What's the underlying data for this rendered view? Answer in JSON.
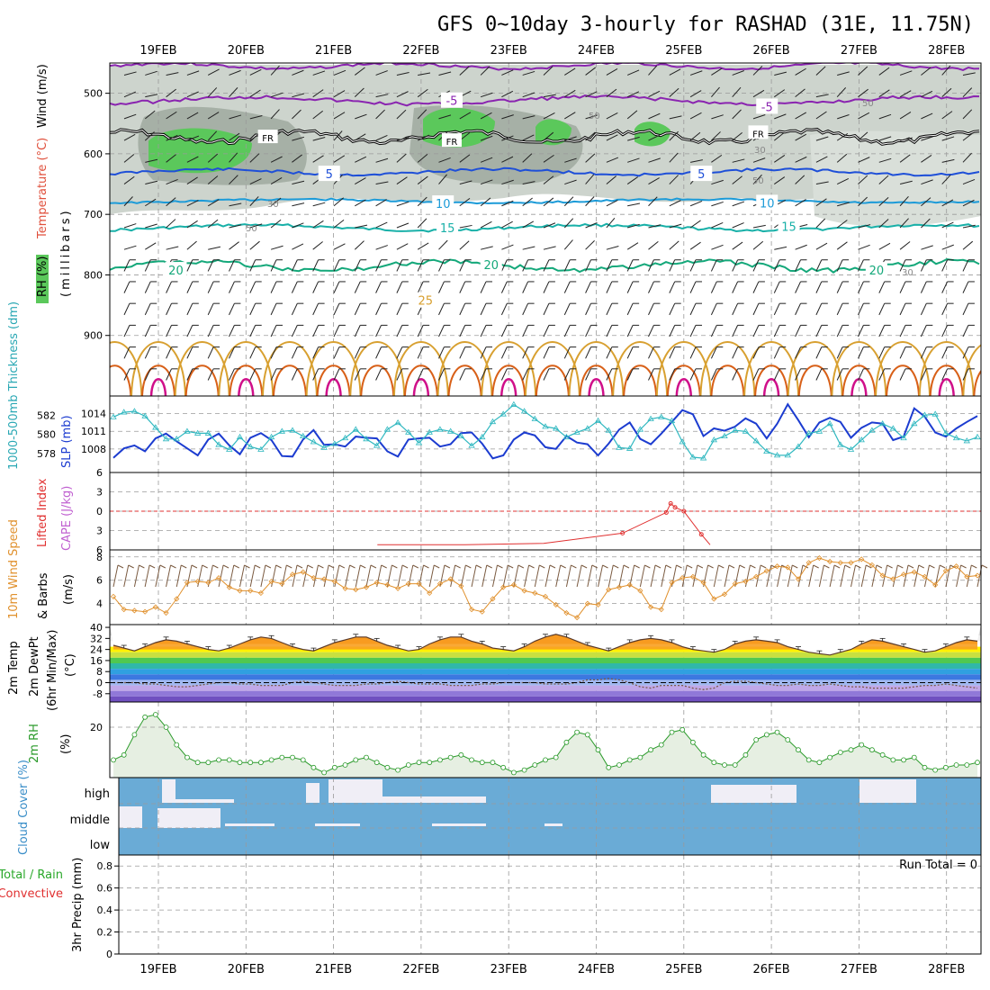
{
  "title": "GFS 0~10day 3-hourly for RASHAD (31E, 11.75N)",
  "dates": [
    "19FEB",
    "20FEB",
    "21FEB",
    "22FEB",
    "23FEB",
    "24FEB",
    "25FEB",
    "26FEB",
    "27FEB",
    "28FEB"
  ],
  "colors": {
    "rh_green": "#5bc85b",
    "rh_gray": "#b8c2b8",
    "freezing": "#000000",
    "t_minus5": "#8a24b0",
    "t_5": "#1e4fd8",
    "t_10": "#1c9bd8",
    "t_15": "#18b0a8",
    "t_20": "#14a87a",
    "t_25": "#d8a030",
    "t_30": "#d86018",
    "t_35": "#d0108a",
    "slp": "#1c3cd0",
    "thickness": "#30b8c0",
    "wind": "#e0902c",
    "barb": "#7a5a40",
    "cloud": "#6aabd6",
    "cloud_clear": "#f0eef6",
    "rh2m": "#2a9a2a",
    "rh2m_fill": "#e6efe2",
    "li": "#e03030"
  },
  "chart_data": [
    {
      "type": "contour",
      "panel": "upper_air",
      "ylabel_parts": [
        "RH (%)",
        "Temperature (°C)",
        "Wind (m/s)"
      ],
      "yaxis_label": "(millibars)",
      "yticks": [
        500,
        600,
        700,
        800,
        900
      ],
      "ylim": [
        1000,
        450
      ],
      "freezing_label": "FR",
      "rh_labels": [
        "30",
        "50",
        "30",
        "50",
        "30",
        "50",
        "50",
        "30"
      ],
      "isotherm_labels": [
        {
          "value": "-5",
          "pressure": 512,
          "x_day": 3.35
        },
        {
          "value": "-5",
          "pressure": 522,
          "x_day": 6.95
        },
        {
          "value": "5",
          "pressure": 633,
          "x_day": 1.95
        },
        {
          "value": "5",
          "pressure": 633,
          "x_day": 6.2
        },
        {
          "value": "10",
          "pressure": 682,
          "x_day": 3.25
        },
        {
          "value": "10",
          "pressure": 681,
          "x_day": 6.95
        },
        {
          "value": "15",
          "pressure": 722,
          "x_day": 3.3
        },
        {
          "value": "15",
          "pressure": 720,
          "x_day": 7.2
        },
        {
          "value": "20",
          "pressure": 792,
          "x_day": 0.2
        },
        {
          "value": "20",
          "pressure": 783,
          "x_day": 3.8
        },
        {
          "value": "20",
          "pressure": 792,
          "x_day": 8.2
        },
        {
          "value": "25",
          "pressure": 842,
          "x_day": 3.05
        }
      ]
    },
    {
      "type": "line",
      "panel": "slp_thickness",
      "ylabel_left": "1000-500mb Thickness (dm)",
      "ylabel_right": "SLP (mb)",
      "yticks_thickness": [
        578,
        580,
        582
      ],
      "yticks_slp": [
        1008,
        1011,
        1014
      ],
      "series": [
        {
          "name": "SLP",
          "values": [
            1006.5,
            1008.1,
            1008.6,
            1007.6,
            1009.8,
            1010.6,
            1009.3,
            1008.1,
            1006.9,
            1009.6,
            1010.6,
            1008.6,
            1007.1,
            1009.9,
            1010.7,
            1009.5,
            1006.8,
            1006.7,
            1009.6,
            1011.2,
            1008.7,
            1008.8,
            1008.4,
            1010.1,
            1009.9,
            1009.8,
            1007.6,
            1006.7,
            1009.6,
            1009.8,
            1009.9,
            1008.4,
            1008.8,
            1010.7,
            1010.8,
            1008.9,
            1006.4,
            1006.9,
            1009.6,
            1010.8,
            1010.3,
            1008.3,
            1008.0,
            1010.2,
            1009.1,
            1008.8,
            1006.9,
            1008.9,
            1011.3,
            1012.5,
            1009.7,
            1008.8,
            1010.6,
            1012.6,
            1014.6,
            1013.9,
            1010.2,
            1011.5,
            1011.1,
            1011.8,
            1013.2,
            1012.3,
            1009.8,
            1012.3,
            1015.6,
            1012.9,
            1010.0,
            1012.5,
            1013.3,
            1012.6,
            1009.9,
            1011.6,
            1012.5,
            1012.3,
            1009.5,
            1010.1,
            1014.9,
            1013.5,
            1010.8,
            1010.1,
            1011.5,
            1012.6,
            1013.6
          ]
        },
        {
          "name": "Thickness",
          "values": [
            581.8,
            582.3,
            582.4,
            581.9,
            580.7,
            579.5,
            579.5,
            580.3,
            580.1,
            580.1,
            578.9,
            578.4,
            579.7,
            578.7,
            578.4,
            579.7,
            580.3,
            580.4,
            579.8,
            579.2,
            578.6,
            579.0,
            579.6,
            580.5,
            579.5,
            578.8,
            580.5,
            581.2,
            580.2,
            579.1,
            580.2,
            580.5,
            580.3,
            579.8,
            578.8,
            579.7,
            581.3,
            582.1,
            583.1,
            582.4,
            581.6,
            580.8,
            580.6,
            579.7,
            580.2,
            580.6,
            581.4,
            580.4,
            578.6,
            578.5,
            580.5,
            581.6,
            581.8,
            581.4,
            579.2,
            577.6,
            577.5,
            579.4,
            579.8,
            580.4,
            580.3,
            579.3,
            578.2,
            577.8,
            577.8,
            578.7,
            580.1,
            580.3,
            581.1,
            578.9,
            578.4,
            579.4,
            580.4,
            581.1,
            580.6,
            579.6,
            581.1,
            582.0,
            582.1,
            580.1,
            579.6,
            579.3,
            579.7
          ]
        }
      ]
    },
    {
      "type": "line",
      "panel": "stability",
      "ylabel_left": "Lifted Index",
      "ylabel_right": "CAPE (J/kg)",
      "yticks": [
        "6",
        "3",
        "0",
        "3",
        "6"
      ],
      "series": [
        {
          "name": "CAPE",
          "points": [
            [
              2.5,
              5.6
            ],
            [
              3.5,
              5.6
            ],
            [
              4.4,
              5.5
            ],
            [
              5.3,
              4.7
            ],
            [
              5.8,
              3.1
            ],
            [
              5.85,
              2.4
            ],
            [
              5.9,
              2.7
            ],
            [
              6.0,
              3.0
            ],
            [
              6.2,
              4.8
            ],
            [
              6.3,
              5.6
            ]
          ]
        }
      ]
    },
    {
      "type": "line",
      "panel": "wind10m",
      "ylabel_left": "10m Wind Speed",
      "ylabel_right": "& Barbs",
      "yunit": "(m/s)",
      "yticks": [
        4,
        6,
        8
      ],
      "series": [
        {
          "name": "Wind speed",
          "values": [
            4.6,
            3.5,
            3.4,
            3.3,
            3.7,
            3.2,
            4.4,
            5.8,
            5.9,
            5.8,
            6.2,
            5.4,
            5.1,
            5.1,
            4.9,
            5.9,
            5.7,
            6.5,
            6.7,
            6.2,
            6.1,
            5.9,
            5.3,
            5.2,
            5.4,
            5.8,
            5.6,
            5.3,
            5.7,
            5.7,
            4.9,
            5.7,
            6.1,
            5.5,
            3.5,
            3.3,
            4.4,
            5.4,
            5.6,
            5.1,
            4.9,
            4.6,
            3.9,
            3.2,
            2.8,
            4.0,
            3.9,
            5.2,
            5.4,
            5.6,
            5.1,
            3.7,
            3.5,
            5.8,
            6.2,
            6.3,
            5.8,
            4.4,
            4.8,
            5.7,
            5.9,
            6.3,
            6.8,
            7.2,
            7.1,
            6.1,
            7.5,
            7.9,
            7.6,
            7.5,
            7.5,
            7.8,
            7.3,
            6.4,
            6.1,
            6.5,
            6.7,
            6.3,
            5.6,
            6.8,
            7.2,
            6.3,
            6.4
          ]
        }
      ]
    },
    {
      "type": "area",
      "panel": "temperature2m",
      "ylabel_parts": [
        "2m Temp",
        "2m DewPt",
        "(6hr Min/Max)",
        "(°C)"
      ],
      "yticks": [
        -8,
        0,
        8,
        16,
        24,
        32,
        40
      ],
      "ytick_labels": [
        "-8",
        "0",
        "8",
        "16",
        "24",
        "32",
        "40"
      ],
      "series": [
        {
          "name": "2m Temp",
          "values": [
            27,
            25,
            23,
            26,
            29,
            31,
            30,
            28,
            26,
            24,
            23,
            25,
            28,
            31,
            33,
            32,
            29,
            26,
            24,
            23,
            26,
            29,
            31,
            33,
            33,
            30,
            27,
            25,
            23,
            24,
            28,
            31,
            33,
            33,
            30,
            28,
            25,
            24,
            23,
            26,
            30,
            33,
            35,
            33,
            30,
            27,
            25,
            23,
            26,
            29,
            31,
            32,
            31,
            29,
            26,
            24,
            23,
            22,
            24,
            28,
            30,
            31,
            30,
            29,
            26,
            24,
            22,
            21,
            20,
            22,
            24,
            28,
            31,
            30,
            28,
            26,
            24,
            22,
            23,
            26,
            29,
            31,
            30
          ]
        },
        {
          "name": "2m DewPt",
          "values": [
            0,
            0,
            0,
            -1,
            -1,
            -2,
            -3,
            -3,
            -2,
            -1,
            0,
            0,
            -1,
            -1,
            -2,
            -2,
            -2,
            0,
            1,
            0,
            -1,
            -2,
            -2,
            -2,
            -1,
            -1,
            0,
            1,
            0,
            -1,
            -1,
            -1,
            -2,
            -2,
            -2,
            -1,
            -1,
            0,
            0,
            0,
            0,
            -1,
            -1,
            -1,
            0,
            2,
            2,
            3,
            2,
            0,
            -3,
            -4,
            -2,
            -2,
            -2,
            -4,
            -5,
            -4,
            0,
            1,
            1,
            0,
            -1,
            -2,
            -2,
            -1,
            -2,
            -2,
            -1,
            -2,
            -3,
            -3,
            -4,
            -4,
            -4,
            -4,
            -3,
            -2,
            -2,
            -1,
            -2,
            -3,
            -4
          ]
        }
      ]
    },
    {
      "type": "line",
      "panel": "rh2m",
      "ylabel": "2m RH",
      "yunit": "(%)",
      "yticks": [
        20
      ],
      "series": [
        {
          "name": "2m RH",
          "values": [
            7,
            9,
            17,
            24,
            25,
            20,
            13,
            8,
            6,
            6,
            7,
            7,
            6,
            6,
            6,
            7,
            8,
            8,
            7,
            4,
            2,
            4,
            5,
            7,
            8,
            6,
            4,
            3,
            5,
            6,
            6,
            7,
            8,
            9,
            7,
            6,
            6,
            4,
            2,
            3,
            5,
            7,
            8,
            14,
            18,
            17,
            11,
            4,
            5,
            7,
            8,
            11,
            13,
            18,
            19,
            14,
            9,
            6,
            5,
            5,
            9,
            15,
            17,
            18,
            15,
            11,
            7,
            6,
            8,
            10,
            11,
            13,
            11,
            9,
            7,
            7,
            8,
            4,
            3,
            4,
            5,
            5,
            6
          ]
        }
      ]
    },
    {
      "type": "bar",
      "panel": "cloud_cover",
      "ylabel": "Cloud Cover (%)",
      "categories": [
        "high",
        "middle",
        "low"
      ]
    },
    {
      "type": "bar",
      "panel": "precip",
      "ylabel_parts": [
        "Total / Rain",
        "Convective",
        "3hr Precip (mm)"
      ],
      "yticks": [
        "0",
        "0.2",
        "0.4",
        "0.6",
        "0.8"
      ],
      "run_total": "Run Total = 0",
      "values": []
    }
  ]
}
